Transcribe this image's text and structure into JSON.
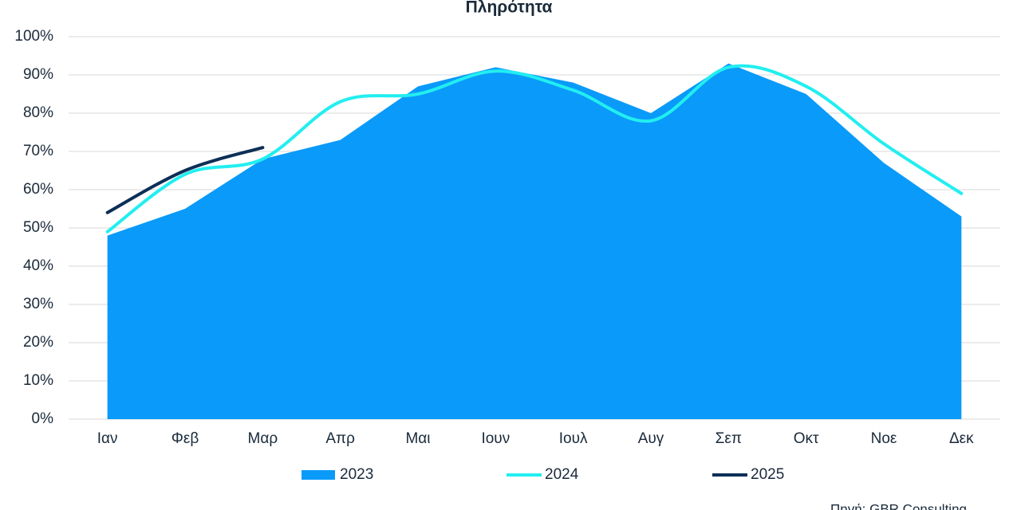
{
  "chart_data": {
    "type": "line",
    "title": "Πληρότητα",
    "source": "Πηγή: GBR Consulting",
    "categories": [
      "Ιαν",
      "Φεβ",
      "Μαρ",
      "Απρ",
      "Μαι",
      "Ιουν",
      "Ιουλ",
      "Αυγ",
      "Σεπ",
      "Οκτ",
      "Νοε",
      "Δεκ"
    ],
    "series": [
      {
        "name": "2023",
        "type": "area",
        "color": "#0a9af9",
        "values": [
          48,
          55,
          68,
          73,
          87,
          92,
          88,
          80,
          93,
          85,
          67,
          53
        ]
      },
      {
        "name": "2024",
        "type": "line",
        "color": "#22eef0",
        "values": [
          49,
          64,
          68,
          83,
          85,
          91,
          86,
          78,
          92,
          87,
          72,
          59
        ]
      },
      {
        "name": "2025",
        "type": "line",
        "color": "#0d2f57",
        "values": [
          54,
          65,
          71,
          null,
          null,
          null,
          null,
          null,
          null,
          null,
          null,
          null
        ]
      }
    ],
    "ylim": [
      0,
      100
    ],
    "yticks": [
      {
        "value": 0,
        "label": "0%"
      },
      {
        "value": 10,
        "label": "10%"
      },
      {
        "value": 20,
        "label": "20%"
      },
      {
        "value": 30,
        "label": "30%"
      },
      {
        "value": 40,
        "label": "40%"
      },
      {
        "value": 50,
        "label": "50%"
      },
      {
        "value": 60,
        "label": "60%"
      },
      {
        "value": 70,
        "label": "70%"
      },
      {
        "value": 80,
        "label": "80%"
      },
      {
        "value": 90,
        "label": "90%"
      },
      {
        "value": 100,
        "label": "100%"
      }
    ],
    "grid": true,
    "smooth": true,
    "legend": "bottom"
  }
}
